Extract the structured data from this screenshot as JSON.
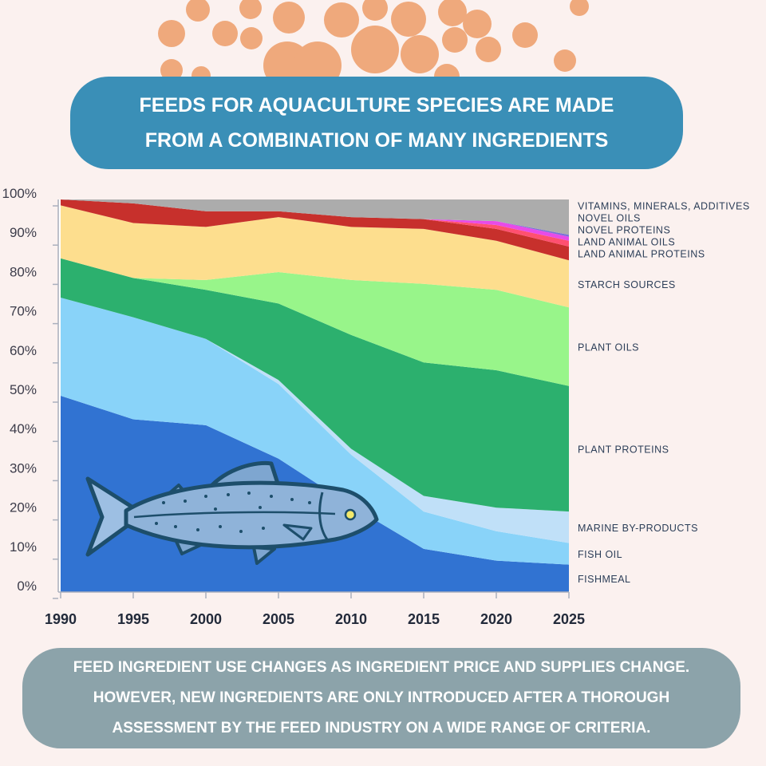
{
  "header": {
    "title_line1": "FEEDS FOR AQUACULTURE SPECIES ARE MADE",
    "title_line2": "FROM A COMBINATION OF MANY INGREDIENTS"
  },
  "footer": {
    "line1": "FEED INGREDIENT USE CHANGES AS INGREDIENT PRICE AND SUPPLIES CHANGE.",
    "line2": "HOWEVER, NEW INGREDIENTS ARE ONLY INTRODUCED AFTER A THOROUGH",
    "line3": "ASSESSMENT BY THE FEED INDUSTRY ON A WIDE RANGE OF CRITERIA."
  },
  "colors": {
    "background": "#fbf1ef",
    "dots": "#efa97c",
    "title_banner": "#3a8fb7",
    "footer_banner": "#8ca3aa",
    "fish_body": "#8fb3d9",
    "fish_outline": "#1d4e6b"
  },
  "chart_data": {
    "type": "area",
    "stacked": true,
    "x": [
      1990,
      1995,
      2000,
      2005,
      2010,
      2015,
      2020,
      2025
    ],
    "ylim": [
      0,
      100
    ],
    "y_ticks": [
      "0%",
      "10%",
      "20%",
      "30%",
      "40%",
      "50%",
      "60%",
      "70%",
      "80%",
      "90%",
      "100%"
    ],
    "x_ticks": [
      "1990",
      "1995",
      "2000",
      "2005",
      "2010",
      "2015",
      "2020",
      "2025"
    ],
    "grid": false,
    "legend_position": "right, labels aligned with each band",
    "series": [
      {
        "name": "FISHMEAL",
        "color": "#3173d2",
        "values": [
          50,
          44,
          42.5,
          34,
          22,
          11,
          8,
          7
        ]
      },
      {
        "name": "FISH OIL",
        "color": "#89d3f9",
        "values": [
          25,
          26,
          22,
          19,
          13,
          9.5,
          7.5,
          5.5
        ]
      },
      {
        "name": "MARINE BY-PRODUCTS",
        "color": "#c0e0f8",
        "values": [
          0,
          0,
          0,
          1,
          1.5,
          4,
          6,
          8
        ]
      },
      {
        "name": "PLANT PROTEINS",
        "color": "#2cb06e",
        "values": [
          10,
          10,
          12.5,
          19.5,
          29,
          34,
          35,
          32
        ]
      },
      {
        "name": "PLANT OILS",
        "color": "#98f58a",
        "values": [
          0,
          0,
          2.5,
          8,
          14,
          20,
          20.5,
          20
        ]
      },
      {
        "name": "STARCH SOURCES",
        "color": "#fdde8e",
        "values": [
          13.5,
          14,
          13.5,
          14,
          13.5,
          14,
          12.5,
          12
        ]
      },
      {
        "name": "LAND ANIMAL PROTEINS",
        "color": "#c7302c",
        "values": [
          1.5,
          5,
          4,
          1.5,
          2.5,
          2.5,
          3,
          3.5
        ]
      },
      {
        "name": "LAND ANIMAL OILS",
        "color": "#ff5070",
        "values": [
          0,
          0,
          0,
          0,
          0,
          0,
          1,
          1.5
        ]
      },
      {
        "name": "NOVEL PROTEINS",
        "color": "#e84be8",
        "values": [
          0,
          0,
          0,
          0,
          0,
          0,
          1,
          1
        ]
      },
      {
        "name": "NOVEL OILS",
        "color": "#7b6fd9",
        "values": [
          0,
          0,
          0,
          0,
          0,
          0,
          0,
          0.5
        ]
      },
      {
        "name": "VITAMINS, MINERALS, ADDITIVES",
        "color": "#acacac",
        "values": [
          0,
          1,
          3,
          3,
          4.5,
          5,
          5.5,
          9
        ]
      }
    ]
  }
}
